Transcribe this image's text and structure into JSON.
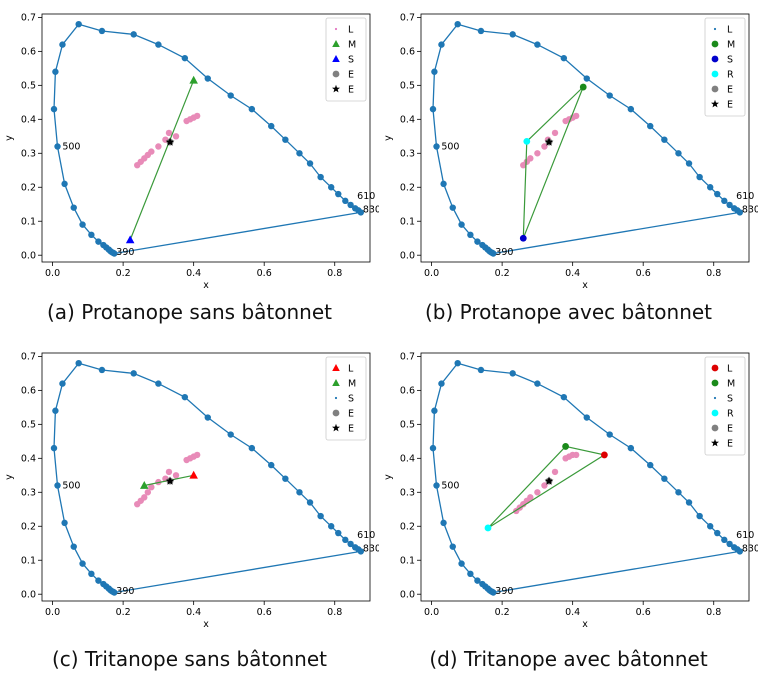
{
  "captions": [
    "(a) Protanope sans bâtonnet",
    "(b) Protanope avec bâtonnet",
    "(c) Tritanope sans bâtonnet",
    "(d) Tritanope avec bâtonnet"
  ],
  "chart_data": [
    {
      "type": "scatter",
      "title": "",
      "caption": "(a) Protanope sans bâtonnet",
      "xlabel": "x",
      "ylabel": "y",
      "xlim": [
        -0.03,
        0.9
      ],
      "ylim": [
        -0.02,
        0.71
      ],
      "xticks": [
        "0.0",
        "0.2",
        "0.4",
        "0.6",
        "0.8"
      ],
      "yticks": [
        "0.0",
        "0.1",
        "0.2",
        "0.3",
        "0.4",
        "0.5",
        "0.6",
        "0.7"
      ],
      "locus_x": [
        0.175,
        0.172,
        0.168,
        0.164,
        0.159,
        0.152,
        0.144,
        0.13,
        0.11,
        0.085,
        0.06,
        0.034,
        0.014,
        0.004,
        0.008,
        0.028,
        0.074,
        0.14,
        0.23,
        0.3,
        0.375,
        0.44,
        0.505,
        0.565,
        0.62,
        0.66,
        0.7,
        0.73,
        0.76,
        0.79,
        0.81,
        0.83,
        0.845,
        0.858,
        0.867,
        0.874
      ],
      "locus_y": [
        0.005,
        0.007,
        0.009,
        0.012,
        0.017,
        0.023,
        0.03,
        0.04,
        0.06,
        0.09,
        0.14,
        0.21,
        0.32,
        0.43,
        0.54,
        0.62,
        0.68,
        0.66,
        0.65,
        0.62,
        0.58,
        0.52,
        0.47,
        0.43,
        0.38,
        0.34,
        0.3,
        0.27,
        0.23,
        0.2,
        0.18,
        0.16,
        0.148,
        0.138,
        0.132,
        0.126
      ],
      "locus_labels": [
        {
          "text": "500",
          "x": 0.022,
          "y": 0.32
        },
        {
          "text": "390",
          "x": 0.175,
          "y": 0.01
        },
        {
          "text": "610",
          "x": 0.858,
          "y": 0.175
        },
        {
          "text": "830",
          "x": 0.874,
          "y": 0.135
        }
      ],
      "pink_x": [
        0.24,
        0.25,
        0.26,
        0.27,
        0.28,
        0.3,
        0.32,
        0.33,
        0.35,
        0.38,
        0.39,
        0.4,
        0.41
      ],
      "pink_y": [
        0.265,
        0.275,
        0.285,
        0.295,
        0.305,
        0.32,
        0.34,
        0.36,
        0.35,
        0.395,
        0.4,
        0.405,
        0.41
      ],
      "triangle_x": [
        0.22,
        0.4
      ],
      "triangle_y": [
        0.045,
        0.515
      ],
      "markers": [
        {
          "label": "L",
          "shape": "dot",
          "color": "#e377c2",
          "x": null,
          "y": null
        },
        {
          "label": "M",
          "shape": "triangle",
          "color": "#2ca02c",
          "x": 0.4,
          "y": 0.515
        },
        {
          "label": "S",
          "shape": "triangle",
          "color": "#0000ff",
          "x": 0.22,
          "y": 0.045
        },
        {
          "label": "E",
          "shape": "circle",
          "color": "#808080",
          "x": 0.333,
          "y": 0.333
        },
        {
          "label": "E",
          "shape": "star",
          "color": "#000000",
          "x": 0.333,
          "y": 0.333
        }
      ],
      "legend": [
        "L",
        "M",
        "S",
        "E",
        "E"
      ],
      "legend_position": "top-right"
    },
    {
      "type": "scatter",
      "title": "",
      "caption": "(b) Protanope avec bâtonnet",
      "xlabel": "x",
      "ylabel": "y",
      "xlim": [
        -0.03,
        0.9
      ],
      "ylim": [
        -0.02,
        0.71
      ],
      "xticks": [
        "0.0",
        "0.2",
        "0.4",
        "0.6",
        "0.8"
      ],
      "yticks": [
        "0.0",
        "0.1",
        "0.2",
        "0.3",
        "0.4",
        "0.5",
        "0.6",
        "0.7"
      ],
      "locus_labels": [
        {
          "text": "500",
          "x": 0.022,
          "y": 0.32
        },
        {
          "text": "390",
          "x": 0.175,
          "y": 0.01
        },
        {
          "text": "610",
          "x": 0.858,
          "y": 0.175
        },
        {
          "text": "830",
          "x": 0.874,
          "y": 0.135
        }
      ],
      "pink_x": [
        0.26,
        0.27,
        0.28,
        0.3,
        0.32,
        0.33,
        0.35,
        0.38,
        0.39,
        0.4,
        0.41
      ],
      "pink_y": [
        0.265,
        0.275,
        0.285,
        0.3,
        0.32,
        0.34,
        0.36,
        0.395,
        0.4,
        0.405,
        0.41
      ],
      "triangle_x": [
        0.26,
        0.43,
        0.27
      ],
      "triangle_y": [
        0.05,
        0.495,
        0.335
      ],
      "markers": [
        {
          "label": "L",
          "shape": "dot",
          "color": "#1f77b4",
          "x": null,
          "y": null
        },
        {
          "label": "M",
          "shape": "circle",
          "color": "#1a8a1a",
          "x": 0.43,
          "y": 0.495
        },
        {
          "label": "S",
          "shape": "circle",
          "color": "#0000cc",
          "x": 0.26,
          "y": 0.05
        },
        {
          "label": "R",
          "shape": "circle",
          "color": "#00ffff",
          "x": 0.27,
          "y": 0.335
        },
        {
          "label": "E",
          "shape": "circle",
          "color": "#808080",
          "x": 0.333,
          "y": 0.333
        },
        {
          "label": "E",
          "shape": "star",
          "color": "#000000",
          "x": 0.333,
          "y": 0.333
        }
      ],
      "legend": [
        "L",
        "M",
        "S",
        "R",
        "E",
        "E"
      ],
      "legend_position": "top-right"
    },
    {
      "type": "scatter",
      "title": "",
      "caption": "(c) Tritanope sans bâtonnet",
      "xlabel": "x",
      "ylabel": "y",
      "xlim": [
        -0.03,
        0.9
      ],
      "ylim": [
        -0.02,
        0.71
      ],
      "xticks": [
        "0.0",
        "0.2",
        "0.4",
        "0.6",
        "0.8"
      ],
      "yticks": [
        "0.0",
        "0.1",
        "0.2",
        "0.3",
        "0.4",
        "0.5",
        "0.6",
        "0.7"
      ],
      "locus_labels": [
        {
          "text": "500",
          "x": 0.022,
          "y": 0.32
        },
        {
          "text": "390",
          "x": 0.175,
          "y": 0.01
        },
        {
          "text": "610",
          "x": 0.858,
          "y": 0.175
        },
        {
          "text": "830",
          "x": 0.874,
          "y": 0.135
        }
      ],
      "pink_x": [
        0.24,
        0.25,
        0.26,
        0.27,
        0.28,
        0.3,
        0.32,
        0.33,
        0.35,
        0.38,
        0.39,
        0.4,
        0.41
      ],
      "pink_y": [
        0.265,
        0.275,
        0.285,
        0.3,
        0.315,
        0.33,
        0.34,
        0.36,
        0.35,
        0.395,
        0.4,
        0.405,
        0.41
      ],
      "triangle_x": [
        0.26,
        0.4
      ],
      "triangle_y": [
        0.32,
        0.35
      ],
      "markers": [
        {
          "label": "L",
          "shape": "triangle",
          "color": "#ff0000",
          "x": 0.4,
          "y": 0.35
        },
        {
          "label": "M",
          "shape": "triangle",
          "color": "#2ca02c",
          "x": 0.26,
          "y": 0.32
        },
        {
          "label": "S",
          "shape": "dot",
          "color": "#1f77b4",
          "x": null,
          "y": null
        },
        {
          "label": "E",
          "shape": "circle",
          "color": "#808080",
          "x": 0.333,
          "y": 0.333
        },
        {
          "label": "E",
          "shape": "star",
          "color": "#000000",
          "x": 0.333,
          "y": 0.333
        }
      ],
      "legend": [
        "L",
        "M",
        "S",
        "E",
        "E"
      ],
      "legend_position": "top-right"
    },
    {
      "type": "scatter",
      "title": "",
      "caption": "(d) Tritanope avec bâtonnet",
      "xlabel": "x",
      "ylabel": "y",
      "xlim": [
        -0.03,
        0.9
      ],
      "ylim": [
        -0.02,
        0.71
      ],
      "xticks": [
        "0.0",
        "0.2",
        "0.4",
        "0.6",
        "0.8"
      ],
      "yticks": [
        "0.0",
        "0.1",
        "0.2",
        "0.3",
        "0.4",
        "0.5",
        "0.6",
        "0.7"
      ],
      "locus_labels": [
        {
          "text": "500",
          "x": 0.022,
          "y": 0.32
        },
        {
          "text": "390",
          "x": 0.175,
          "y": 0.01
        },
        {
          "text": "610",
          "x": 0.858,
          "y": 0.175
        },
        {
          "text": "830",
          "x": 0.874,
          "y": 0.135
        }
      ],
      "pink_x": [
        0.24,
        0.25,
        0.26,
        0.27,
        0.28,
        0.3,
        0.32,
        0.35,
        0.38,
        0.39,
        0.4,
        0.41
      ],
      "pink_y": [
        0.245,
        0.255,
        0.265,
        0.275,
        0.285,
        0.3,
        0.32,
        0.36,
        0.4,
        0.405,
        0.41,
        0.41
      ],
      "triangle_x": [
        0.16,
        0.38,
        0.49
      ],
      "triangle_y": [
        0.195,
        0.435,
        0.41
      ],
      "markers": [
        {
          "label": "L",
          "shape": "circle",
          "color": "#dd0000",
          "x": 0.49,
          "y": 0.41
        },
        {
          "label": "M",
          "shape": "circle",
          "color": "#1a8a1a",
          "x": 0.38,
          "y": 0.435
        },
        {
          "label": "S",
          "shape": "dot",
          "color": "#1f77b4",
          "x": null,
          "y": null
        },
        {
          "label": "R",
          "shape": "circle",
          "color": "#00ffff",
          "x": 0.16,
          "y": 0.195
        },
        {
          "label": "E",
          "shape": "circle",
          "color": "#808080",
          "x": 0.333,
          "y": 0.333
        },
        {
          "label": "E",
          "shape": "star",
          "color": "#000000",
          "x": 0.333,
          "y": 0.333
        }
      ],
      "legend": [
        "L",
        "M",
        "S",
        "R",
        "E",
        "E"
      ],
      "legend_position": "top-right"
    }
  ]
}
